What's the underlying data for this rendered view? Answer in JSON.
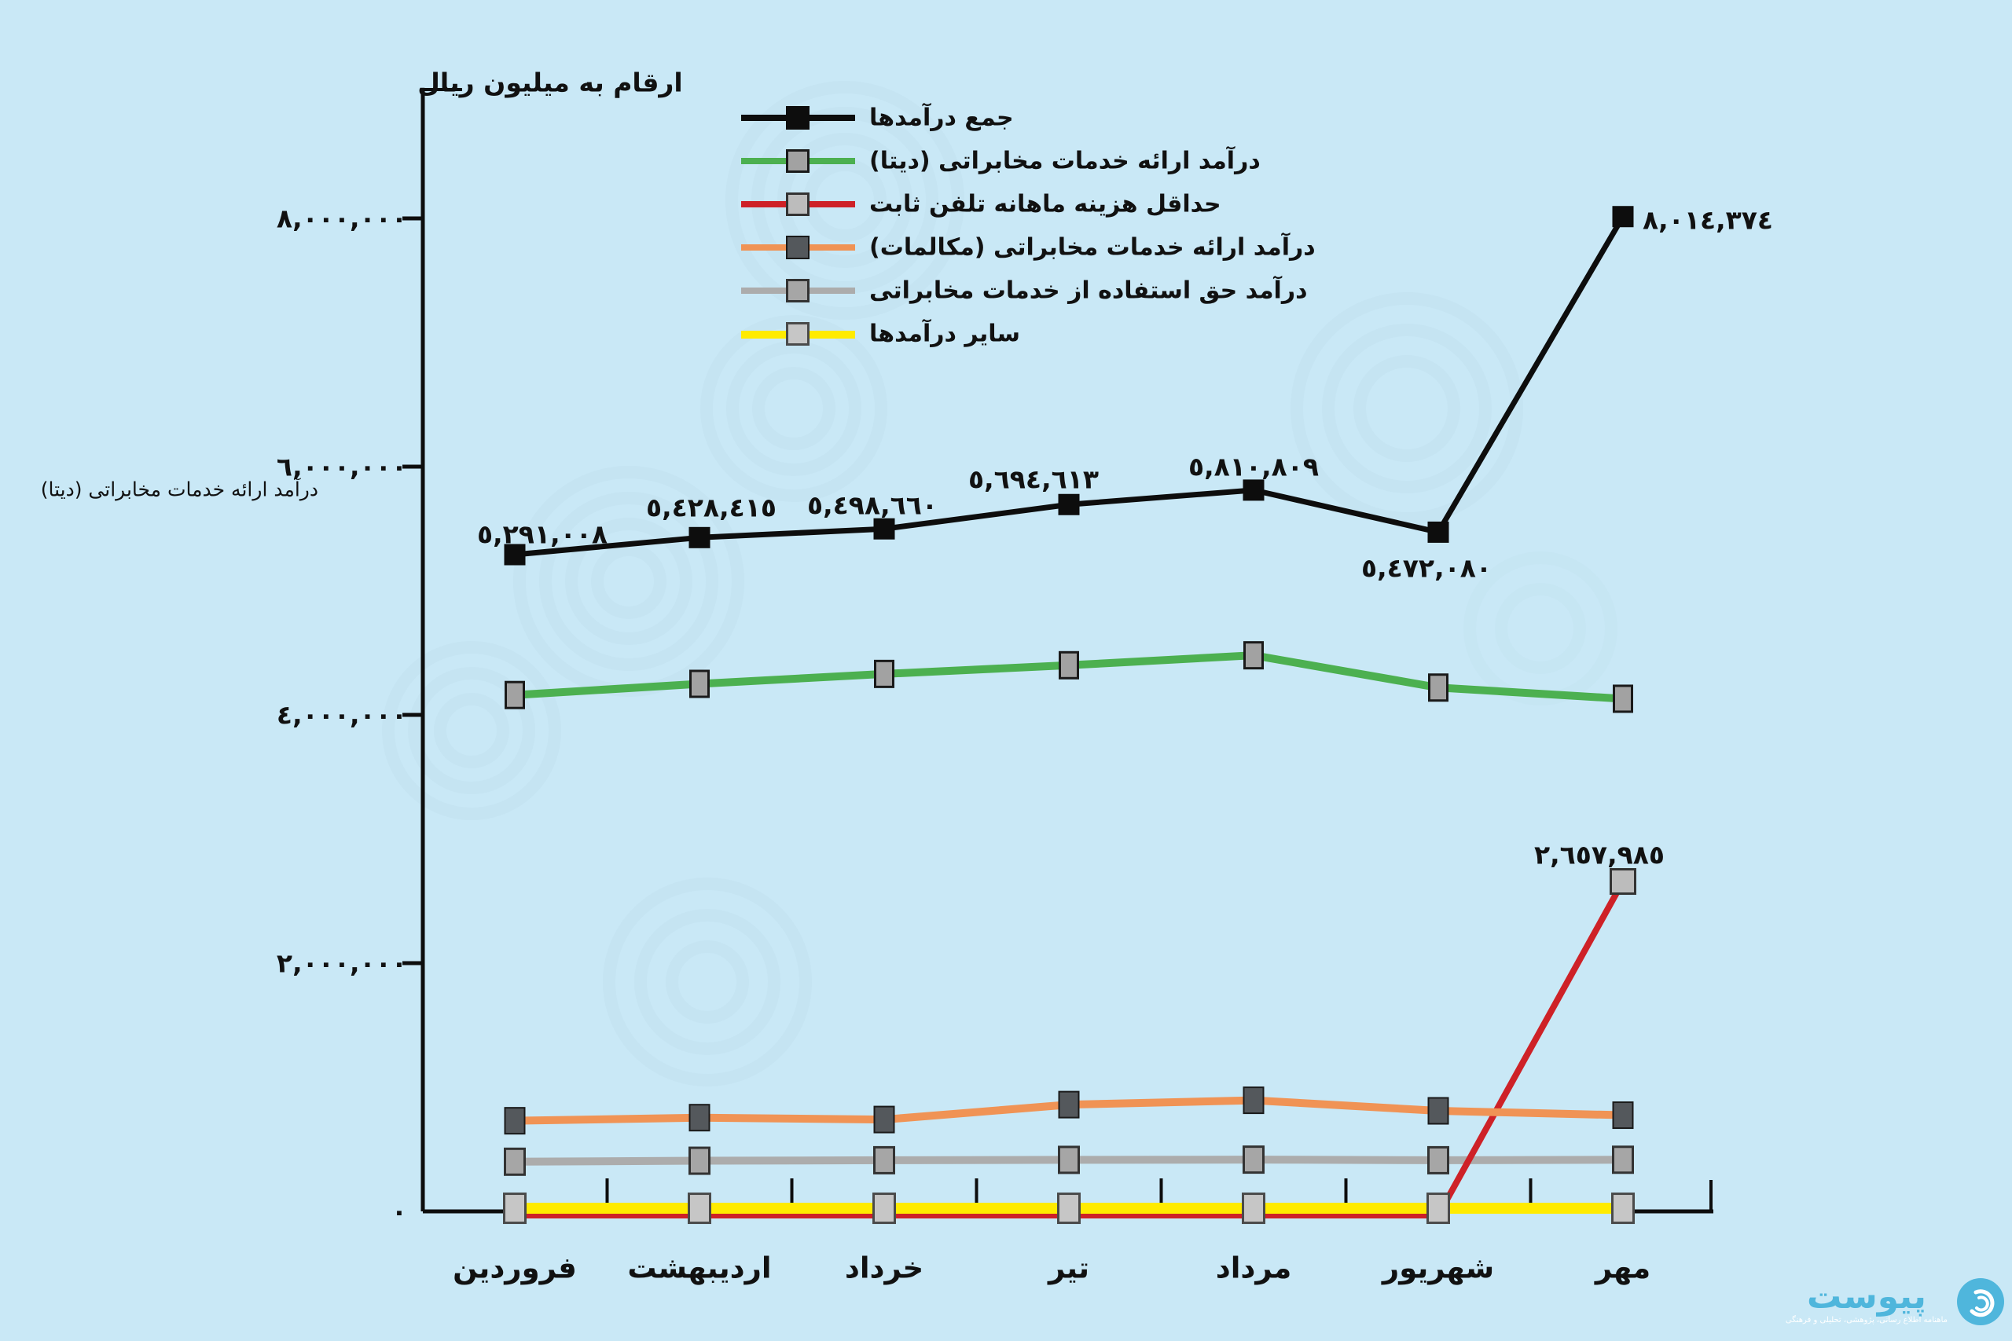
{
  "title": "ارقام به میلیون ریال",
  "side_note": "درآمد ارائه خدمات مخابراتی (دیتا)",
  "legend": {
    "items": [
      {
        "label": "جمع درآمدها"
      },
      {
        "label": "درآمد ارائه خدمات مخابراتی (دیتا)"
      },
      {
        "label": "حداقل هزینه ماهانه تلفن ثابت"
      },
      {
        "label": "درآمد ارائه خدمات مخابراتی (مکالمات)"
      },
      {
        "label": "درآمد حق استفاده از خدمات مخابراتی"
      },
      {
        "label": "سایر درآمدها"
      }
    ]
  },
  "chart_data": {
    "type": "line",
    "title": "ارقام به میلیون ریال",
    "categories": [
      "فروردین",
      "اردیبهشت",
      "خرداد",
      "تیر",
      "مرداد",
      "شهریور",
      "مهر"
    ],
    "ylim": [
      0,
      8500000
    ],
    "grid": false,
    "legend_position": "top",
    "y_ticks": [
      {
        "value": 8000000,
        "label": "٨,٠٠٠,٠٠٠"
      },
      {
        "value": 6000000,
        "label": "٦,٠٠٠,٠٠٠"
      },
      {
        "value": 4000000,
        "label": "٤,٠٠٠,٠٠٠"
      },
      {
        "value": 2000000,
        "label": "٢,٠٠٠,٠٠٠"
      },
      {
        "value": 0,
        "label": "٠"
      }
    ],
    "series": [
      {
        "name": "جمع درآمدها",
        "color": "#0d0d0d",
        "values": [
          5291008,
          5428415,
          5498660,
          5694613,
          5810809,
          5472080,
          8014374
        ],
        "point_labels": [
          "٥,٢٩١,٠٠٨",
          "٥,٤٢٨,٤١٥",
          "٥,٤٩٨,٦٦٠",
          "٥,٦٩٤,٦١٣",
          "٥,٨١٠,٨٠٩",
          "٥,٤٧٢,٠٨٠",
          "٨,٠١٤,٣٧٤"
        ]
      },
      {
        "name": "درآمد ارائه خدمات مخابراتی (دیتا)",
        "color": "#4cb050",
        "values": [
          4160000,
          4250000,
          4330000,
          4400000,
          4480000,
          4220000,
          4130000
        ],
        "point_labels": [
          null,
          null,
          null,
          null,
          null,
          null,
          null
        ]
      },
      {
        "name": "حداقل هزینه ماهانه تلفن ثابت",
        "color": "#ce2127",
        "values": [
          0,
          0,
          0,
          0,
          0,
          0,
          2657985
        ],
        "point_labels": [
          null,
          null,
          null,
          null,
          null,
          null,
          "٢,٦٥٧,٩٨٥"
        ]
      },
      {
        "name": "درآمد ارائه خدمات مخابراتی (مکالمات)",
        "color": "#f09355",
        "values": [
          730000,
          755000,
          740000,
          860000,
          895000,
          810000,
          775000
        ],
        "point_labels": [
          null,
          null,
          null,
          null,
          null,
          null,
          null
        ]
      },
      {
        "name": "درآمد حق استفاده از خدمات مخابراتی",
        "color": "#acacac",
        "values": [
          400000,
          408000,
          412000,
          415000,
          417000,
          412000,
          416000
        ],
        "point_labels": [
          null,
          null,
          null,
          null,
          null,
          null,
          null
        ]
      },
      {
        "name": "سایر درآمدها",
        "color": "#ffeb00",
        "values": [
          25000,
          25000,
          25000,
          25000,
          25000,
          25000,
          25000
        ],
        "point_labels": [
          null,
          null,
          null,
          null,
          null,
          null,
          null
        ]
      }
    ]
  },
  "logo": {
    "word": "پیوست",
    "tagline": "ماهنامه اطلاع رسانی، پژوهشی، تحلیلی و فرهنگی"
  }
}
